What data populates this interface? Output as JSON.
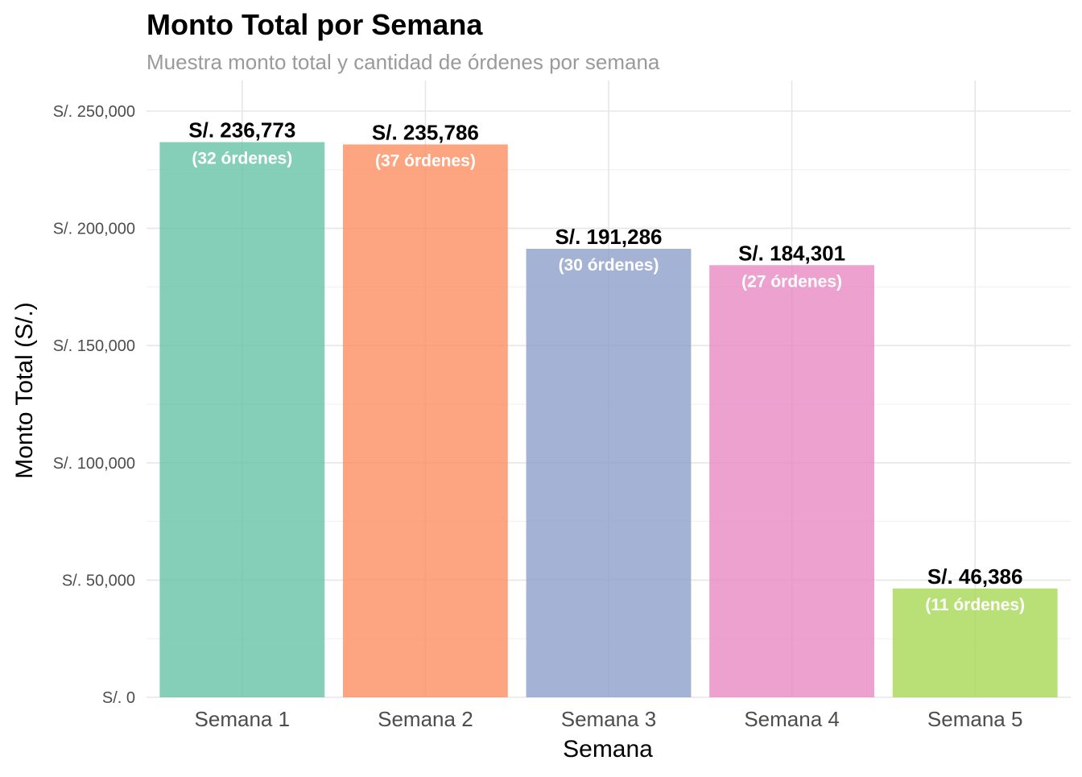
{
  "chart_data": {
    "type": "bar",
    "title": "Monto Total por Semana",
    "subtitle": "Muestra monto total y cantidad de órdenes por semana",
    "xlabel": "Semana",
    "ylabel": "Monto Total (S/.)",
    "categories": [
      "Semana 1",
      "Semana 2",
      "Semana 3",
      "Semana 4",
      "Semana 5"
    ],
    "values": [
      236773,
      235786,
      191286,
      184301,
      46386
    ],
    "value_labels": [
      "S/. 236,773",
      "S/. 235,786",
      "S/. 191,286",
      "S/. 184,301",
      "S/. 46,386"
    ],
    "count_labels": [
      "(32 órdenes)",
      "(37 órdenes)",
      "(30 órdenes)",
      "(27 órdenes)",
      "(11 órdenes)"
    ],
    "ylim": [
      0,
      250000
    ],
    "yticks": [
      0,
      50000,
      100000,
      150000,
      200000,
      250000
    ],
    "ytick_labels": [
      "S/. 0",
      "S/. 50,000",
      "S/. 100,000",
      "S/. 150,000",
      "S/. 200,000",
      "S/. 250,000"
    ],
    "colors": [
      "#66C2A5",
      "#FC8D62",
      "#8DA0CB",
      "#E78AC3",
      "#A6D854"
    ],
    "bar_opacity": 0.8,
    "grid": true,
    "legend": "none"
  }
}
